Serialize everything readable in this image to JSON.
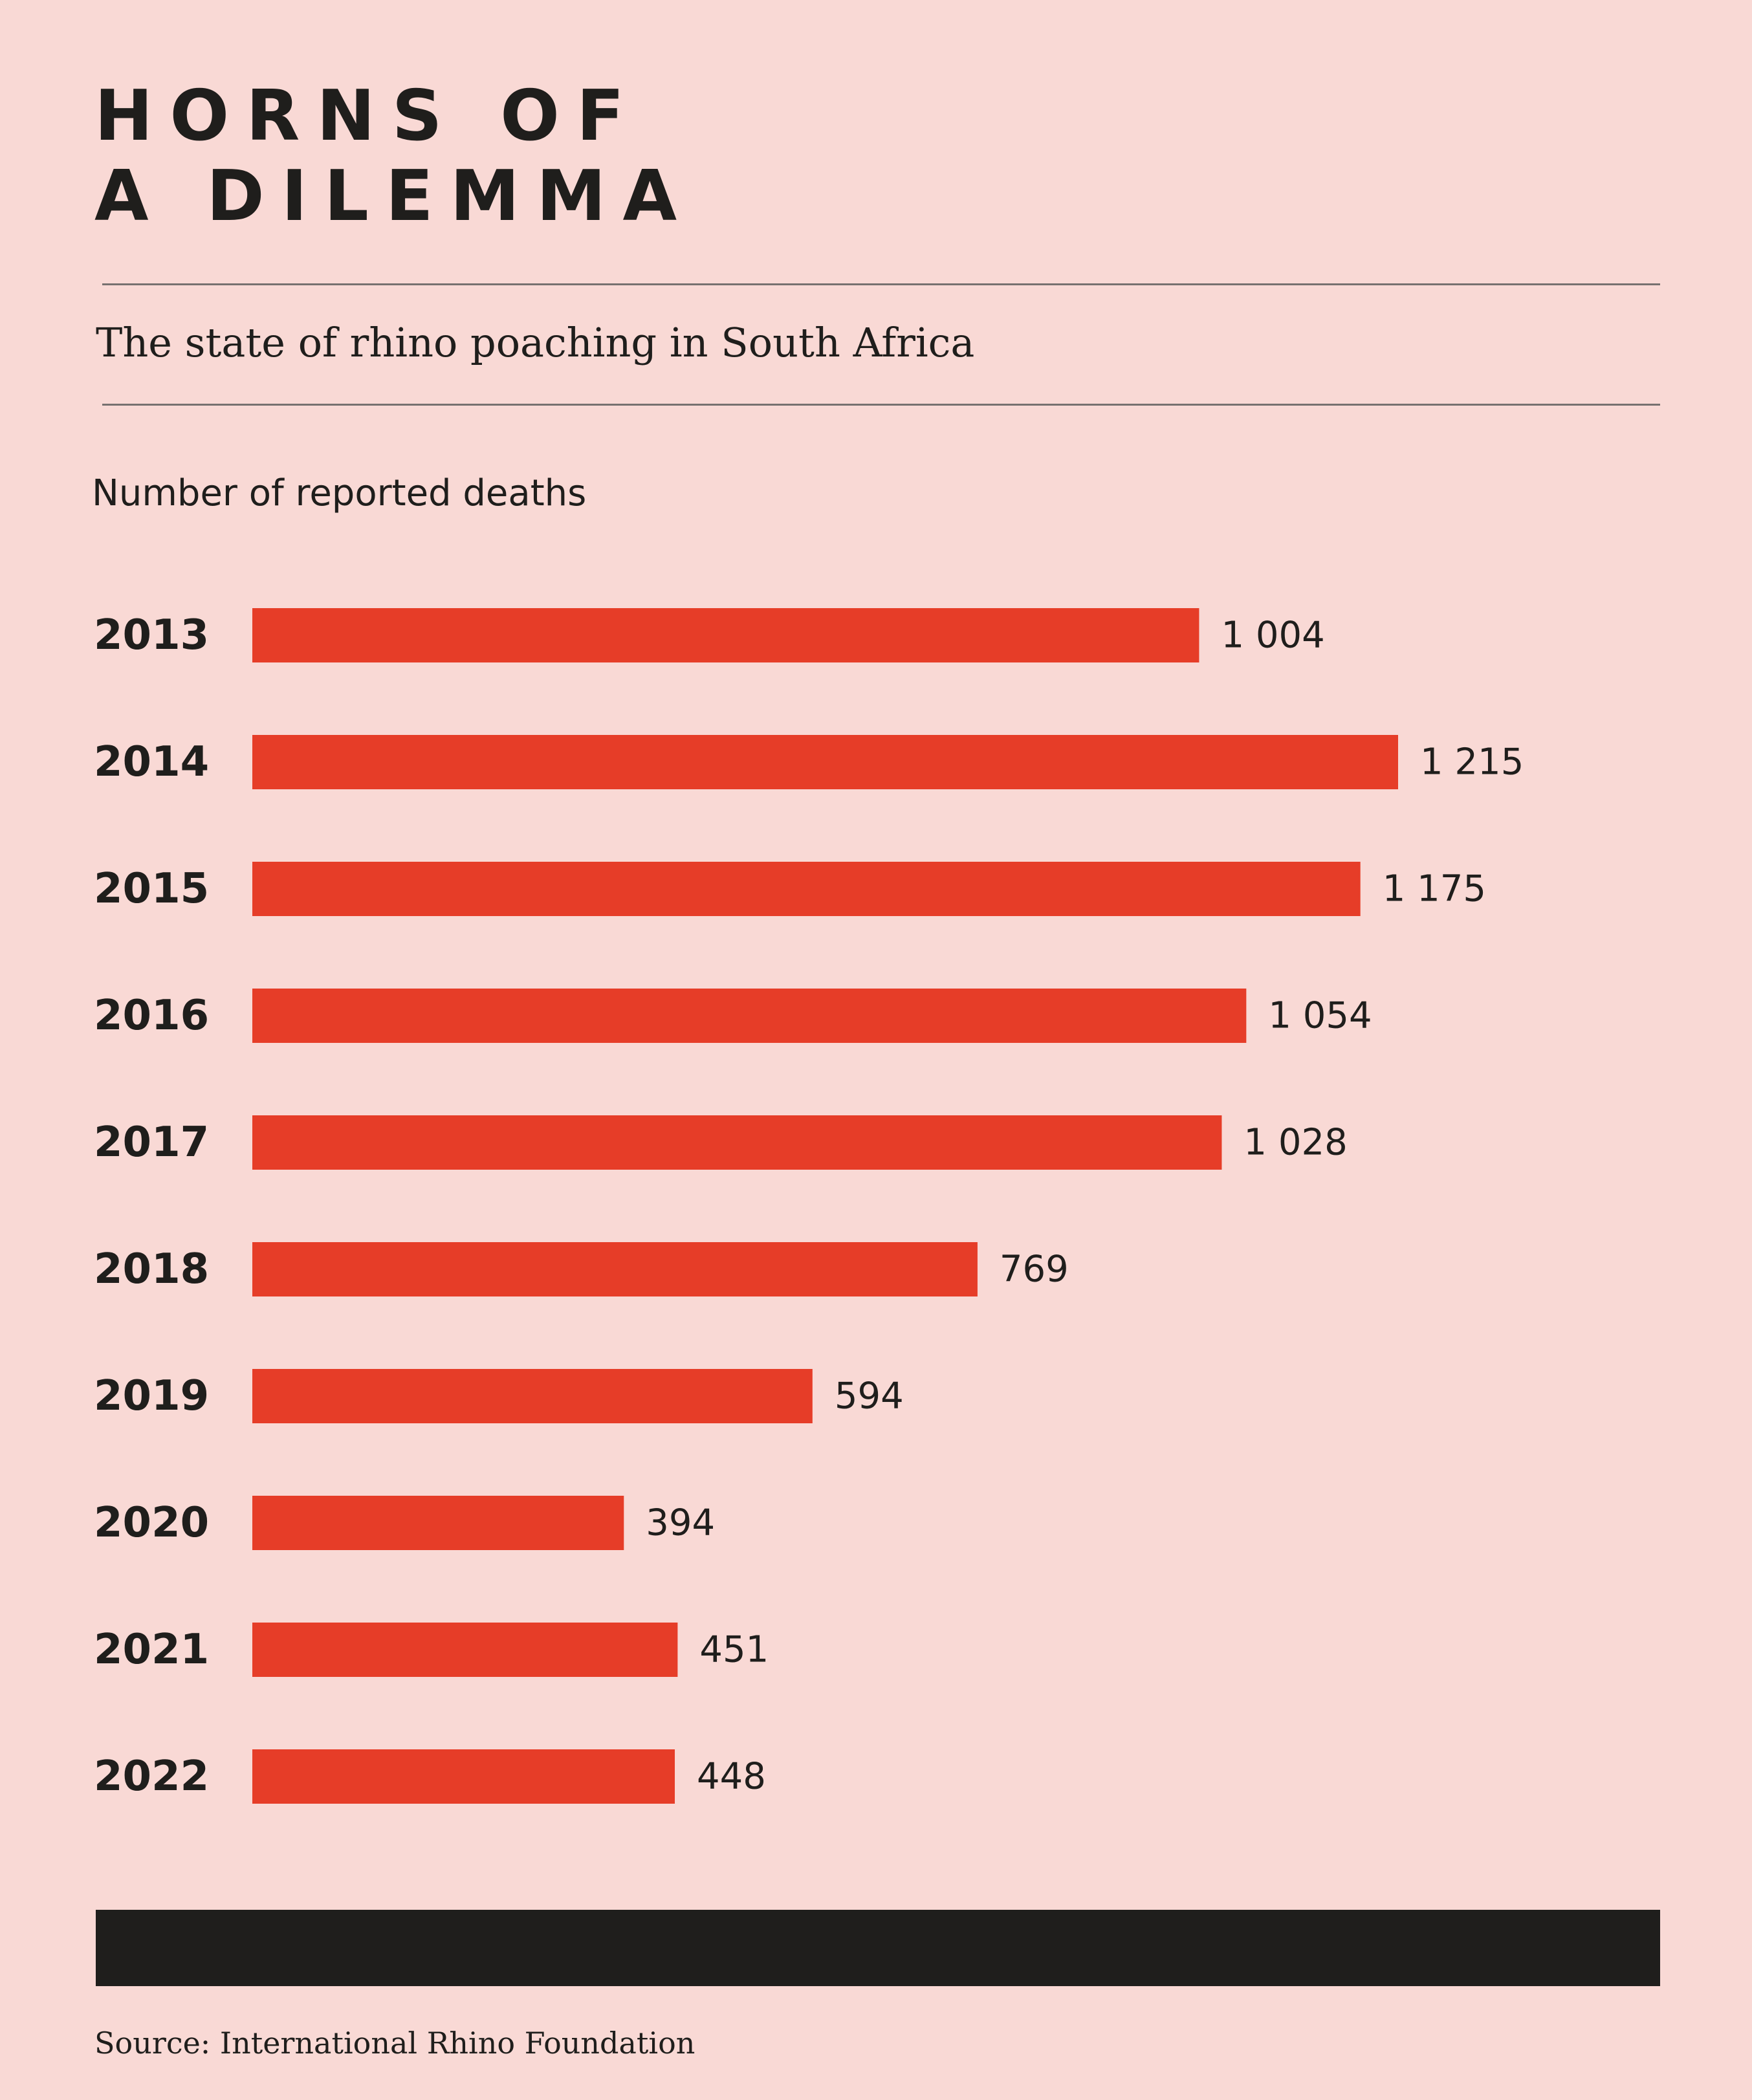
{
  "header": {
    "title_line1": "HORNS OF",
    "title_line2": "A DILEMMA",
    "subtitle": "The state of rhino poaching in South Africa"
  },
  "colors": {
    "background": "#f9d9d5",
    "bar": "#e63d28",
    "text": "#1f1e1c",
    "rule": "#777170"
  },
  "chart_data": {
    "type": "bar",
    "orientation": "horizontal",
    "title": "HORNS OF A DILEMMA",
    "subtitle": "The state of rhino poaching in South Africa",
    "measure_label": "Number of reported deaths",
    "categories": [
      "2013",
      "2014",
      "2015",
      "2016",
      "2017",
      "2018",
      "2019",
      "2020",
      "2021",
      "2022"
    ],
    "values": [
      1004,
      1215,
      1175,
      1054,
      1028,
      769,
      594,
      394,
      451,
      448
    ],
    "value_labels": [
      "1 004",
      "1 215",
      "1 175",
      "1 054",
      "1 028",
      "769",
      "594",
      "394",
      "451",
      "448"
    ],
    "xlabel": "",
    "ylabel": "",
    "xlim": [
      0,
      1215
    ],
    "grid": false,
    "legend": "none"
  },
  "footer": {
    "source": "Source: International Rhino Foundation"
  }
}
